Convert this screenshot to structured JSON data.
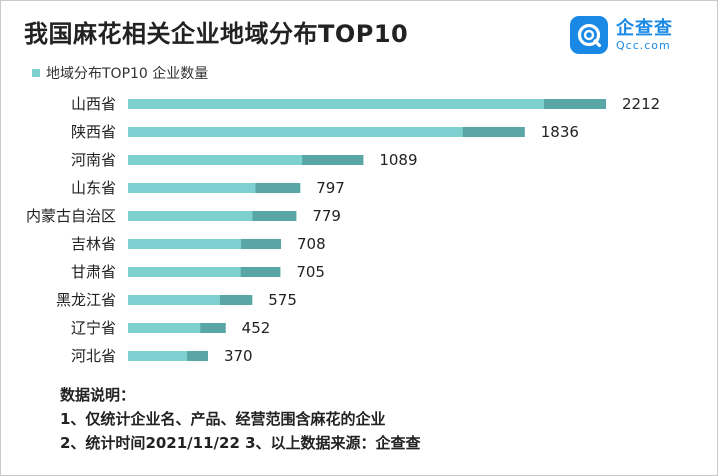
{
  "header": {
    "title": "我国麻花相关企业地域分布TOP10",
    "legend_label": "地域分布TOP10 企业数量"
  },
  "logo": {
    "icon": "qcc-logo-icon",
    "name": "企查查",
    "domain": "Qcc.com",
    "color": "#1a89e6"
  },
  "colors": {
    "bar_light": "#7ecfcf",
    "bar_dark": "#5aa6a6",
    "text": "#222222"
  },
  "chart_data": {
    "type": "bar",
    "orientation": "horizontal",
    "title": "我国麻花相关企业地域分布TOP10",
    "categories": [
      "山西省",
      "陕西省",
      "河南省",
      "山东省",
      "内蒙古自治区",
      "吉林省",
      "甘肃省",
      "黑龙江省",
      "辽宁省",
      "河北省"
    ],
    "series": [
      {
        "name": "地域分布TOP10 企业数量",
        "values": [
          2212,
          1836,
          1089,
          797,
          779,
          708,
          705,
          575,
          452,
          370
        ]
      }
    ],
    "legend_position": "top-left",
    "grid": false
  },
  "notes": {
    "heading": "数据说明：",
    "line1": "1、仅统计企业名、产品、经营范围含麻花的企业",
    "line2": "2、统计时间2021/11/22   3、以上数据来源：企查查"
  }
}
